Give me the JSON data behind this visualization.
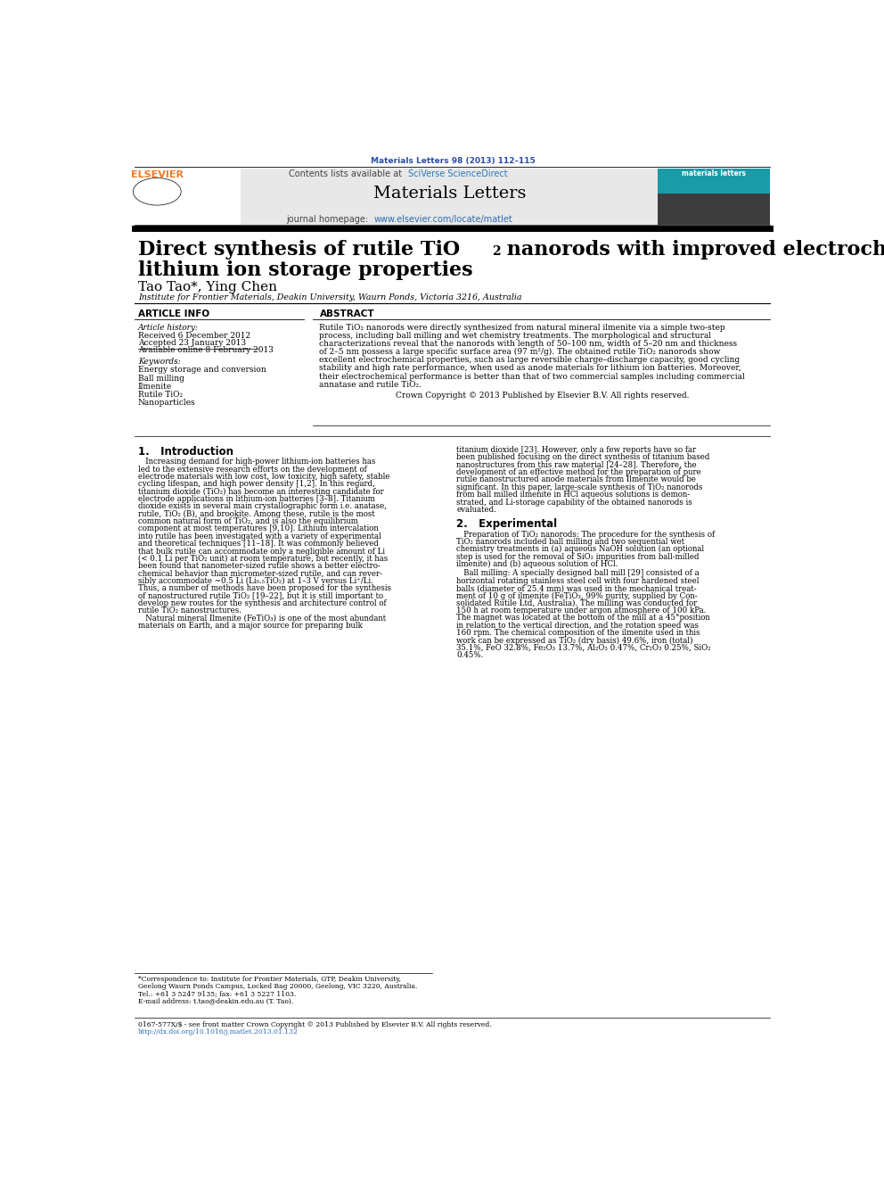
{
  "page_width": 9.92,
  "page_height": 13.23,
  "bg_color": "#ffffff",
  "top_citation": "Materials Letters 98 (2013) 112–115",
  "top_citation_color": "#2b4ca8",
  "header_bg": "#e8e8e8",
  "header_contents_text": "Contents lists available at ",
  "header_sciverse": "SciVerse ScienceDirect",
  "header_journal": "Materials Letters",
  "header_homepage_text": "journal homepage: ",
  "header_url": "www.elsevier.com/locate/matlet",
  "title_line1": "Direct synthesis of rutile TiO",
  "title_sub": "2",
  "title_line1_rest": " nanorods with improved electrochemical",
  "title_line2": "lithium ion storage properties",
  "authors": "Tao Tao*, Ying Chen",
  "affiliation": "Institute for Frontier Materials, Deakin University, Waurn Ponds, Victoria 3216, Australia",
  "section_article_info": "ARTICLE INFO",
  "section_abstract": "ABSTRACT",
  "article_history_label": "Article history:",
  "received": "Received 6 December 2012",
  "accepted": "Accepted 23 January 2013",
  "available": "Available online 8 February 2013",
  "keywords_label": "Keywords:",
  "keywords": [
    "Energy storage and conversion",
    "Ball milling",
    "Ilmenite",
    "Rutile TiO₂",
    "Nanoparticles"
  ],
  "abstract_lines": [
    "Rutile TiO₂ nanorods were directly synthesized from natural mineral ilmenite via a simple two-step",
    "process, including ball milling and wet chemistry treatments. The morphological and structural",
    "characterizations reveal that the nanorods with length of 50–100 nm, width of 5–20 nm and thickness",
    "of 2–5 nm possess a large specific surface area (97 m²/g). The obtained rutile TiO₂ nanorods show",
    "excellent electrochemical properties, such as large reversible charge–discharge capacity, good cycling",
    "stability and high rate performance, when used as anode materials for lithium ion batteries. Moreover,",
    "their electrochemical performance is better than that of two commercial samples including commercial",
    "annatase and rutile TiO₂."
  ],
  "copyright_text": "Crown Copyright © 2013 Published by Elsevier B.V. All rights reserved.",
  "intro_heading": "1.   Introduction",
  "intro_left": [
    "   Increasing demand for high-power lithium-ion batteries has",
    "led to the extensive research efforts on the development of",
    "electrode materials with low cost, low toxicity, high safety, stable",
    "cycling lifespan, and high power density [1,2]. In this regard,",
    "titanium dioxide (TiO₂) has become an interesting candidate for",
    "electrode applications in lithium-ion batteries [3–8]. Titanium",
    "dioxide exists in several main crystallographic form i.e. anatase,",
    "rutile, TiO₂ (B), and brookite. Among these, rutile is the most",
    "common natural form of TiO₂, and is also the equilibrium",
    "component at most temperatures [9,10]. Lithium intercalation",
    "into rutile has been investigated with a variety of experimental",
    "and theoretical techniques [11–18]. It was commonly believed",
    "that bulk rutile can accommodate only a negligible amount of Li",
    "(< 0.1 Li per TiO₂ unit) at room temperature, but recently, it has",
    "been found that nanometer-sized rutile shows a better electro-",
    "chemical behavior than micrometer-sized rutile, and can rever-",
    "sibly accommodate ~0.5 Li (Li₀.₅TiO₂) at 1–3 V versus Li⁺/Li.",
    "Thus, a number of methods have been proposed for the synthesis",
    "of nanostructured rutile TiO₂ [19–22], but it is still important to",
    "develop new routes for the synthesis and architecture control of",
    "rutile TiO₂ nanostructures.",
    "   Natural mineral Ilmenite (FeTiO₃) is one of the most abundant",
    "materials on Earth, and a major source for preparing bulk"
  ],
  "intro_right": [
    "titanium dioxide [23]. However, only a few reports have so far",
    "been published focusing on the direct synthesis of titanium based",
    "nanostructures from this raw material [24–28]. Therefore, the",
    "development of an effective method for the preparation of pure",
    "rutile nanostructured anode materials from Ilmenite would be",
    "significant. In this paper, large-scale synthesis of TiO₂ nanorods",
    "from ball milled ilmenite in HCl aqueous solutions is demon-",
    "strated, and Li-storage capability of the obtained nanorods is",
    "evaluated."
  ],
  "exp_heading": "2.   Experimental",
  "exp_lines": [
    "   Preparation of TiO₂ nanorods: The procedure for the synthesis of",
    "TiO₂ nanorods included ball milling and two sequential wet",
    "chemistry treatments in (a) aqueous NaOH solution (an optional",
    "step is used for the removal of SiO₂ impurities from ball-milled",
    "ilmenite) and (b) aqueous solution of HCl."
  ],
  "bm_lines": [
    "   Ball milling: A specially designed ball mill [29] consisted of a",
    "horizontal rotating stainless steel cell with four hardened steel",
    "balls (diameter of 25.4 mm) was used in the mechanical treat-",
    "ment of 10 g of ilmenite (FeTiO₃, 99% purity, supplied by Con-",
    "solidated Rutile Ltd, Australia). The milling was conducted for",
    "150 h at room temperature under argon atmosphere of 100 kPa.",
    "The magnet was located at the bottom of the mill at a 45°position",
    "in relation to the vertical direction, and the rotation speed was",
    "160 rpm. The chemical composition of the ilmenite used in this",
    "work can be expressed as TiO₂ (dry basis) 49.6%, iron (total)",
    "35.1%, FeO 32.8%, Fe₂O₃ 13.7%, Al₂O₃ 0.47%, Cr₂O₃ 0.25%, SiO₂",
    "0.45%."
  ],
  "footnote_corr": "*Correspondence to: Institute for Frontier Materials, GTP, Deakin University, Geelong Waurn Ponds Campus, Locked Bag 20000, Geelong, VIC 3220, Australia. Tel.: +61 3 5247 9135; fax: +61 3 5227 1103.",
  "footnote_corr_lines": [
    "*Correspondence to: Institute for Frontier Materials, GTP, Deakin University,",
    "Geelong Waurn Ponds Campus, Locked Bag 20000, Geelong, VIC 3220, Australia.",
    "Tel.: +61 3 5247 9135; fax: +61 3 5227 1103."
  ],
  "footnote_email": "E-mail address: t.tao@deakin.edu.au (T. Tao).",
  "footer_line1": "0167-577X/$ - see front matter Crown Copyright © 2013 Published by Elsevier B.V. All rights reserved.",
  "footer_line2": "http://dx.doi.org/10.1016/j.matlet.2013.01.132",
  "elsevier_color": "#f47920",
  "link_color": "#2b6cb0",
  "sciverse_color": "#2b7abd"
}
